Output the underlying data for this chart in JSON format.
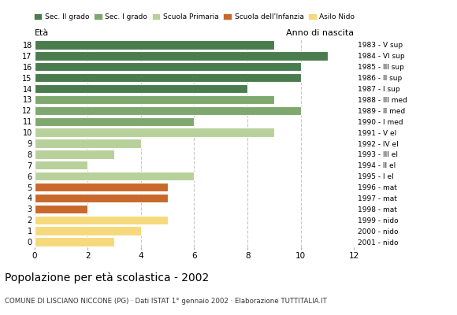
{
  "ages": [
    18,
    17,
    16,
    15,
    14,
    13,
    12,
    11,
    10,
    9,
    8,
    7,
    6,
    5,
    4,
    3,
    2,
    1,
    0
  ],
  "values": [
    9,
    11,
    10,
    10,
    8,
    9,
    10,
    6,
    9,
    4,
    3,
    2,
    6,
    5,
    5,
    2,
    5,
    4,
    3
  ],
  "right_labels": [
    "1983 - V sup",
    "1984 - VI sup",
    "1985 - III sup",
    "1986 - II sup",
    "1987 - I sup",
    "1988 - III med",
    "1989 - II med",
    "1990 - I med",
    "1991 - V el",
    "1992 - IV el",
    "1993 - III el",
    "1994 - II el",
    "1995 - I el",
    "1996 - mat",
    "1997 - mat",
    "1998 - mat",
    "1999 - nido",
    "2000 - nido",
    "2001 - nido"
  ],
  "categories": {
    "Sec. II grado": {
      "ages": [
        14,
        15,
        16,
        17,
        18
      ],
      "color": "#4a7c4e"
    },
    "Sec. I grado": {
      "ages": [
        11,
        12,
        13
      ],
      "color": "#7fa86e"
    },
    "Scuola Primaria": {
      "ages": [
        6,
        7,
        8,
        9,
        10
      ],
      "color": "#b8d09a"
    },
    "Scuola dell'Infanzia": {
      "ages": [
        3,
        4,
        5
      ],
      "color": "#c8682a"
    },
    "Asilo Nido": {
      "ages": [
        0,
        1,
        2
      ],
      "color": "#f5d97a"
    }
  },
  "legend_order": [
    "Sec. II grado",
    "Sec. I grado",
    "Scuola Primaria",
    "Scuola dell'Infanzia",
    "Asilo Nido"
  ],
  "legend_colors": [
    "#4a7c4e",
    "#7fa86e",
    "#b8d09a",
    "#c8682a",
    "#f5d97a"
  ],
  "xlim": [
    0,
    12
  ],
  "xticks": [
    0,
    2,
    4,
    6,
    8,
    10,
    12
  ],
  "xlabel_left": "Età",
  "xlabel_right": "Anno di nascita",
  "title": "Popolazione per età scolastica - 2002",
  "subtitle": "COMUNE DI LISCIANO NICCONE (PG) · Dati ISTAT 1° gennaio 2002 · Elaborazione TUTTITALIA.IT",
  "bar_height": 0.82,
  "background_color": "#ffffff",
  "grid_color": "#c8c8c8"
}
